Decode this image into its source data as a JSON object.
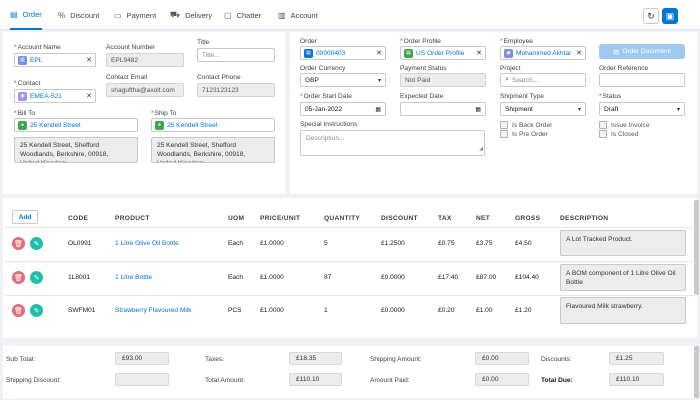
{
  "tabs": [
    {
      "label": "Order",
      "icon": "file-icon",
      "glyph": "▤"
    },
    {
      "label": "Discount",
      "icon": "percent-icon",
      "glyph": "%"
    },
    {
      "label": "Payment",
      "icon": "card-icon",
      "glyph": "▭"
    },
    {
      "label": "Delivery",
      "icon": "truck-icon",
      "glyph": "⛟"
    },
    {
      "label": "Chatter",
      "icon": "chat-icon",
      "glyph": "▢"
    },
    {
      "label": "Account",
      "icon": "building-icon",
      "glyph": "▥"
    }
  ],
  "toolbar": {
    "refresh_icon": "refresh-icon",
    "refresh_glyph": "↻",
    "save_icon": "save-icon",
    "save_glyph": "▣"
  },
  "left_form": {
    "account_name": {
      "label": "Account Name",
      "value": "EPL"
    },
    "account_number": {
      "label": "Account Number",
      "value": "EPL9482"
    },
    "title": {
      "label": "Title",
      "placeholder": "Title..."
    },
    "contact": {
      "label": "Contact",
      "value": "EMEA-521"
    },
    "contact_email": {
      "label": "Contact Email",
      "value": "shaguftha@axolt.com"
    },
    "contact_phone": {
      "label": "Contact Phone",
      "value": "7123123123"
    },
    "bill_to": {
      "label": "Bill To",
      "value": "25 Kendell Street",
      "address": "25 Kendell Street, Shefford\nWoodlands, Berkshire, 00918,\nUnited Kingdom"
    },
    "ship_to": {
      "label": "Ship To",
      "value": "25 Kendell Street",
      "address": "25 Kendell Street, Shefford\nWoodlands, Berkshire, 00918,\nUnited Kingdom"
    }
  },
  "right_form": {
    "order": {
      "label": "Order",
      "value": "00000403"
    },
    "order_profile": {
      "label": "Order Profile",
      "value": "US Order Profile"
    },
    "employee": {
      "label": "Employee",
      "value": "Mohammed Akhtar"
    },
    "order_document_button": "Order Document",
    "order_currency": {
      "label": "Order Currency",
      "value": "GBP"
    },
    "payment_status": {
      "label": "Payment Status",
      "value": "Not Paid"
    },
    "project": {
      "label": "Project",
      "placeholder": "Search..."
    },
    "order_reference": {
      "label": "Order Reference",
      "value": ""
    },
    "order_start_date": {
      "label": "Order Start Date",
      "value": "05-Jan-2022"
    },
    "expected_date": {
      "label": "Expected Date",
      "value": ""
    },
    "shipment_type": {
      "label": "Shipment Type",
      "value": "Shipment"
    },
    "status": {
      "label": "Status",
      "value": "Draft"
    },
    "back_order": "Is Back Order",
    "pre_order": "Is Pre Order",
    "issue_invoice": "Issue Invoice",
    "is_closed": "Is Closed",
    "special_instructions": {
      "label": "Special Instructions",
      "placeholder": "Description..."
    }
  },
  "lines": {
    "add_label": "Add",
    "headers": [
      "CODE",
      "PRODUCT",
      "UOM",
      "PRICE/UNIT",
      "QUANTITY",
      "DISCOUNT",
      "TAX",
      "NET",
      "GROSS",
      "DESCRIPTION"
    ],
    "rows": [
      {
        "code": "OL0991",
        "product": "1 Litre Olive Oil Bottle",
        "uom": "Each",
        "price": "£1.0000",
        "quantity": "5",
        "discount": "£1.2500",
        "tax": "£0.75",
        "net": "£3.75",
        "gross": "£4.50",
        "description": "A Lot Tracked Product."
      },
      {
        "code": "1L8001",
        "product": "1 Litre Bottle",
        "uom": "Each",
        "price": "£1.0000",
        "quantity": "87",
        "discount": "£0.0000",
        "tax": "£17.40",
        "net": "£87.00",
        "gross": "£104.40",
        "description": "A BOM component of 1 Litre Olive Oil Bottle"
      },
      {
        "code": "SWFM01",
        "product": "Strawberry Flavoured Milk",
        "uom": "PCS",
        "price": "£1.0000",
        "quantity": "1",
        "discount": "£0.0000",
        "tax": "£0.20",
        "net": "£1.00",
        "gross": "£1.20",
        "description": "Flavoured Milk strawberry."
      }
    ]
  },
  "totals": {
    "sub_total": {
      "label": "Sub Total:",
      "value": "£93.00"
    },
    "taxes": {
      "label": "Taxes:",
      "value": "£18.35"
    },
    "shipping_amount": {
      "label": "Shipping Amount:",
      "value": "£0.00"
    },
    "discounts": {
      "label": "Discounts:",
      "value": "£1.25"
    },
    "shipping_discount": {
      "label": "Shipping Discount:",
      "value": ""
    },
    "total_amount": {
      "label": "Total Amount:",
      "value": "£110.10"
    },
    "amount_paid": {
      "label": "Amount Paid:",
      "value": "£0.00"
    },
    "total_due": {
      "label": "Total Due:",
      "value": "£110.10"
    }
  },
  "colors": {
    "accent": "#0176d3",
    "delete": "#e06d7a",
    "edit": "#1fbfa7"
  }
}
